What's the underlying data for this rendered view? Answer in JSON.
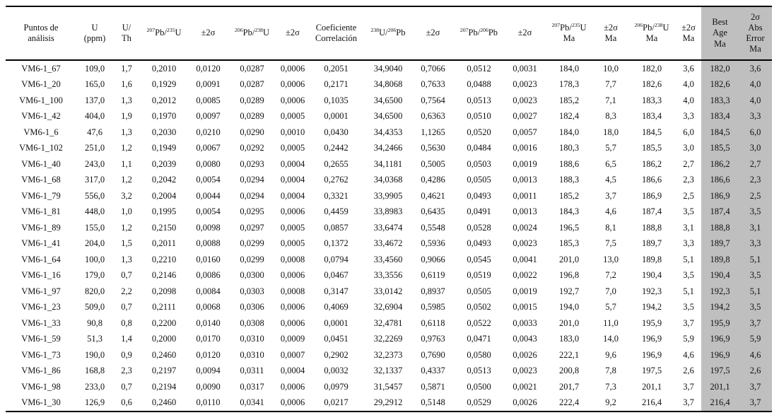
{
  "styles": {
    "highlight_gray": "#bfbfbf",
    "border_color": "#000000",
    "text_color": "#111111"
  },
  "table": {
    "columns": [
      {
        "key": "punto",
        "label": "Puntos de\nanálisis",
        "gray": false
      },
      {
        "key": "u_ppm",
        "label": "U\n(ppm)",
        "gray": false
      },
      {
        "key": "u_th",
        "label": "U/\nTh",
        "gray": false
      },
      {
        "key": "pb207_u235",
        "label": "^{207}Pb/^{235}U",
        "gray": false
      },
      {
        "key": "err_pb207_u235",
        "label": "±2σ",
        "gray": false
      },
      {
        "key": "pb206_u238",
        "label": "^{206}Pb/^{238}U",
        "gray": false
      },
      {
        "key": "err_pb206_u238",
        "label": "±2σ",
        "gray": false
      },
      {
        "key": "coef_correlacion",
        "label": "Coeficiente\nCorrelación",
        "gray": false
      },
      {
        "key": "u238_pb206",
        "label": "^{238}U/^{206}Pb",
        "gray": false
      },
      {
        "key": "err_u238_pb206",
        "label": "±2σ",
        "gray": false
      },
      {
        "key": "pb207_pb206",
        "label": "^{207}Pb/^{206}Pb",
        "gray": false
      },
      {
        "key": "err_pb207_pb206",
        "label": "±2σ",
        "gray": false
      },
      {
        "key": "pb207_u235_ma",
        "label": "^{207}Pb/^{235}U\nMa",
        "gray": false
      },
      {
        "key": "err_pb207_u235_ma",
        "label": "±2σ\nMa",
        "gray": false
      },
      {
        "key": "pb206_u238_ma",
        "label": "^{206}Pb/^{238}U\nMa",
        "gray": false
      },
      {
        "key": "err_pb206_u238_ma",
        "label": "±2σ\nMa",
        "gray": false
      },
      {
        "key": "best_age_ma",
        "label": "Best\nAge\nMa",
        "gray": true
      },
      {
        "key": "abs_error_2s_ma",
        "label": "2σ\nAbs\nError\nMa",
        "gray": true
      }
    ],
    "rows": [
      [
        "VM6-1_67",
        "109,0",
        "1,7",
        "0,2010",
        "0,0120",
        "0,0287",
        "0,0006",
        "0,2051",
        "34,9040",
        "0,7066",
        "0,0512",
        "0,0031",
        "184,0",
        "10,0",
        "182,0",
        "3,6",
        "182,0",
        "3,6"
      ],
      [
        "VM6-1_20",
        "165,0",
        "1,6",
        "0,1929",
        "0,0091",
        "0,0287",
        "0,0006",
        "0,2171",
        "34,8068",
        "0,7633",
        "0,0488",
        "0,0023",
        "178,3",
        "7,7",
        "182,6",
        "4,0",
        "182,6",
        "4,0"
      ],
      [
        "VM6-1_100",
        "137,0",
        "1,3",
        "0,2012",
        "0,0085",
        "0,0289",
        "0,0006",
        "0,1035",
        "34,6500",
        "0,7564",
        "0,0513",
        "0,0023",
        "185,2",
        "7,1",
        "183,3",
        "4,0",
        "183,3",
        "4,0"
      ],
      [
        "VM6-1_42",
        "404,0",
        "1,9",
        "0,1970",
        "0,0097",
        "0,0289",
        "0,0005",
        "0,0001",
        "34,6500",
        "0,6363",
        "0,0510",
        "0,0027",
        "182,4",
        "8,3",
        "183,4",
        "3,3",
        "183,4",
        "3,3"
      ],
      [
        "VM6-1_6",
        "47,6",
        "1,3",
        "0,2030",
        "0,0210",
        "0,0290",
        "0,0010",
        "0,0430",
        "34,4353",
        "1,1265",
        "0,0520",
        "0,0057",
        "184,0",
        "18,0",
        "184,5",
        "6,0",
        "184,5",
        "6,0"
      ],
      [
        "VM6-1_102",
        "251,0",
        "1,2",
        "0,1949",
        "0,0067",
        "0,0292",
        "0,0005",
        "0,2442",
        "34,2466",
        "0,5630",
        "0,0484",
        "0,0016",
        "180,3",
        "5,7",
        "185,5",
        "3,0",
        "185,5",
        "3,0"
      ],
      [
        "VM6-1_40",
        "243,0",
        "1,1",
        "0,2039",
        "0,0080",
        "0,0293",
        "0,0004",
        "0,2655",
        "34,1181",
        "0,5005",
        "0,0503",
        "0,0019",
        "188,6",
        "6,5",
        "186,2",
        "2,7",
        "186,2",
        "2,7"
      ],
      [
        "VM6-1_68",
        "317,0",
        "1,2",
        "0,2042",
        "0,0054",
        "0,0294",
        "0,0004",
        "0,2762",
        "34,0368",
        "0,4286",
        "0,0505",
        "0,0013",
        "188,3",
        "4,5",
        "186,6",
        "2,3",
        "186,6",
        "2,3"
      ],
      [
        "VM6-1_79",
        "556,0",
        "3,2",
        "0,2004",
        "0,0044",
        "0,0294",
        "0,0004",
        "0,3321",
        "33,9905",
        "0,4621",
        "0,0493",
        "0,0011",
        "185,2",
        "3,7",
        "186,9",
        "2,5",
        "186,9",
        "2,5"
      ],
      [
        "VM6-1_81",
        "448,0",
        "1,0",
        "0,1995",
        "0,0054",
        "0,0295",
        "0,0006",
        "0,4459",
        "33,8983",
        "0,6435",
        "0,0491",
        "0,0013",
        "184,3",
        "4,6",
        "187,4",
        "3,5",
        "187,4",
        "3,5"
      ],
      [
        "VM6-1_89",
        "155,0",
        "1,2",
        "0,2150",
        "0,0098",
        "0,0297",
        "0,0005",
        "0,0857",
        "33,6474",
        "0,5548",
        "0,0528",
        "0,0024",
        "196,5",
        "8,1",
        "188,8",
        "3,1",
        "188,8",
        "3,1"
      ],
      [
        "VM6-1_41",
        "204,0",
        "1,5",
        "0,2011",
        "0,0088",
        "0,0299",
        "0,0005",
        "0,1372",
        "33,4672",
        "0,5936",
        "0,0493",
        "0,0023",
        "185,3",
        "7,5",
        "189,7",
        "3,3",
        "189,7",
        "3,3"
      ],
      [
        "VM6-1_64",
        "100,0",
        "1,3",
        "0,2210",
        "0,0160",
        "0,0299",
        "0,0008",
        "0,0794",
        "33,4560",
        "0,9066",
        "0,0545",
        "0,0041",
        "201,0",
        "13,0",
        "189,8",
        "5,1",
        "189,8",
        "5,1"
      ],
      [
        "VM6-1_16",
        "179,0",
        "0,7",
        "0,2146",
        "0,0086",
        "0,0300",
        "0,0006",
        "0,0467",
        "33,3556",
        "0,6119",
        "0,0519",
        "0,0022",
        "196,8",
        "7,2",
        "190,4",
        "3,5",
        "190,4",
        "3,5"
      ],
      [
        "VM6-1_97",
        "820,0",
        "2,2",
        "0,2098",
        "0,0084",
        "0,0303",
        "0,0008",
        "0,3147",
        "33,0142",
        "0,8937",
        "0,0505",
        "0,0019",
        "192,7",
        "7,0",
        "192,3",
        "5,1",
        "192,3",
        "5,1"
      ],
      [
        "VM6-1_23",
        "509,0",
        "0,7",
        "0,2111",
        "0,0068",
        "0,0306",
        "0,0006",
        "0,4069",
        "32,6904",
        "0,5985",
        "0,0502",
        "0,0015",
        "194,0",
        "5,7",
        "194,2",
        "3,5",
        "194,2",
        "3,5"
      ],
      [
        "VM6-1_33",
        "90,8",
        "0,8",
        "0,2200",
        "0,0140",
        "0,0308",
        "0,0006",
        "0,0001",
        "32,4781",
        "0,6118",
        "0,0522",
        "0,0033",
        "201,0",
        "11,0",
        "195,9",
        "3,7",
        "195,9",
        "3,7"
      ],
      [
        "VM6-1_59",
        "51,3",
        "1,4",
        "0,2000",
        "0,0170",
        "0,0310",
        "0,0009",
        "0,0451",
        "32,2269",
        "0,9763",
        "0,0471",
        "0,0043",
        "183,0",
        "14,0",
        "196,9",
        "5,9",
        "196,9",
        "5,9"
      ],
      [
        "VM6-1_73",
        "190,0",
        "0,9",
        "0,2460",
        "0,0120",
        "0,0310",
        "0,0007",
        "0,2902",
        "32,2373",
        "0,7690",
        "0,0580",
        "0,0026",
        "222,1",
        "9,6",
        "196,9",
        "4,6",
        "196,9",
        "4,6"
      ],
      [
        "VM6-1_86",
        "168,8",
        "2,3",
        "0,2197",
        "0,0094",
        "0,0311",
        "0,0004",
        "0,0032",
        "32,1337",
        "0,4337",
        "0,0513",
        "0,0023",
        "200,8",
        "7,8",
        "197,5",
        "2,6",
        "197,5",
        "2,6"
      ],
      [
        "VM6-1_98",
        "233,0",
        "0,7",
        "0,2194",
        "0,0090",
        "0,0317",
        "0,0006",
        "0,0979",
        "31,5457",
        "0,5871",
        "0,0500",
        "0,0021",
        "201,7",
        "7,3",
        "201,1",
        "3,7",
        "201,1",
        "3,7"
      ],
      [
        "VM6-1_30",
        "126,9",
        "0,6",
        "0,2460",
        "0,0110",
        "0,0341",
        "0,0006",
        "0,0217",
        "29,2912",
        "0,5148",
        "0,0529",
        "0,0026",
        "222,4",
        "9,2",
        "216,4",
        "3,7",
        "216,4",
        "3,7"
      ]
    ]
  }
}
